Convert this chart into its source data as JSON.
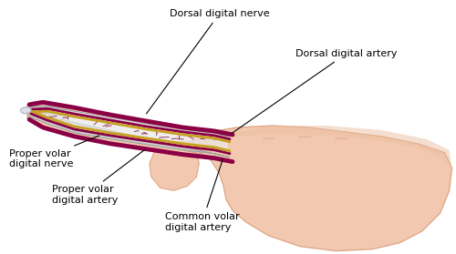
{
  "background_color": "#ffffff",
  "skin_color": "#f2c9b0",
  "skin_dark": "#e0a888",
  "skin_medium": "#ebbea0",
  "finger_bone_color": "#d8d8d8",
  "artery_color": "#8B0045",
  "nerve_color": "#c8a020",
  "annotation_color": "#000000",
  "labels": {
    "dorsal_nerve": "Dorsal digital nerve",
    "dorsal_artery": "Dorsal digital artery",
    "proper_volar_nerve": "Proper volar\ndigital nerve",
    "proper_volar_artery": "Proper volar\ndigital artery",
    "common_volar_artery": "Common volar\ndigital artery"
  },
  "fig_width": 5.0,
  "fig_height": 2.79,
  "dpi": 100
}
